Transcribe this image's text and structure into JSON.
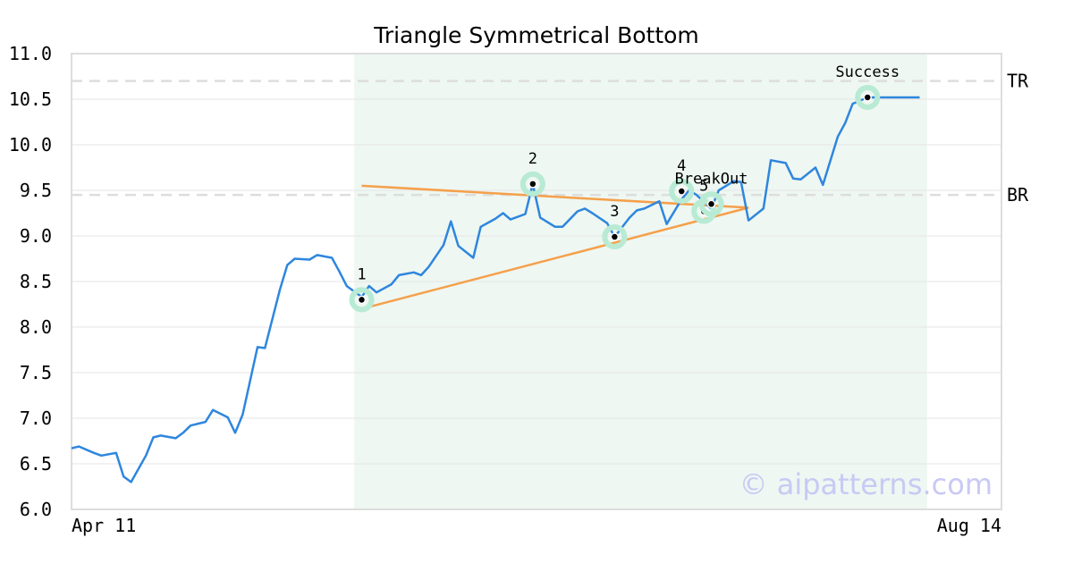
{
  "chart_data": {
    "type": "line",
    "title": "Triangle Symmetrical Bottom",
    "watermark": "© aipatterns.com",
    "ylim": [
      6.0,
      11.0
    ],
    "yticks": [
      "6.0",
      "6.5",
      "7.0",
      "7.5",
      "8.0",
      "8.5",
      "9.0",
      "9.5",
      "10.0",
      "10.5",
      "11.0"
    ],
    "xlim": [
      "2024-04-11",
      "2024-08-14"
    ],
    "x_start_label": "Apr 11",
    "x_end_label": "Aug 14",
    "levels": [
      {
        "name": "TR",
        "value": 10.7
      },
      {
        "name": "BR",
        "value": 9.45
      }
    ],
    "pattern_region": {
      "start": "2024-05-19",
      "end": "2024-08-04"
    },
    "series": [
      {
        "x": [
          "2024-04-11",
          "2024-04-12",
          "2024-04-14",
          "2024-04-15",
          "2024-04-17",
          "2024-04-18",
          "2024-04-19",
          "2024-04-21",
          "2024-04-22",
          "2024-04-23",
          "2024-04-25",
          "2024-04-26",
          "2024-04-27",
          "2024-04-29",
          "2024-04-30",
          "2024-05-02",
          "2024-05-03",
          "2024-05-04",
          "2024-05-06",
          "2024-05-07",
          "2024-05-09",
          "2024-05-10",
          "2024-05-11",
          "2024-05-13",
          "2024-05-14",
          "2024-05-16",
          "2024-05-17",
          "2024-05-18",
          "2024-05-20",
          "2024-05-21",
          "2024-05-22",
          "2024-05-24",
          "2024-05-25",
          "2024-05-27",
          "2024-05-28",
          "2024-05-29",
          "2024-05-31",
          "2024-06-01",
          "2024-06-02",
          "2024-06-04",
          "2024-06-05",
          "2024-06-07",
          "2024-06-08",
          "2024-06-09",
          "2024-06-11",
          "2024-06-12",
          "2024-06-13",
          "2024-06-15",
          "2024-06-16",
          "2024-06-18",
          "2024-06-19",
          "2024-06-20",
          "2024-06-22",
          "2024-06-23",
          "2024-06-25",
          "2024-06-26",
          "2024-06-27",
          "2024-06-29",
          "2024-06-30",
          "2024-07-02",
          "2024-07-03",
          "2024-07-04",
          "2024-07-06",
          "2024-07-07",
          "2024-07-09",
          "2024-07-10",
          "2024-07-11",
          "2024-07-13",
          "2024-07-14",
          "2024-07-16",
          "2024-07-17",
          "2024-07-18",
          "2024-07-20",
          "2024-07-21",
          "2024-07-23",
          "2024-07-24",
          "2024-07-25",
          "2024-07-27",
          "2024-07-28",
          "2024-07-30",
          "2024-07-31",
          "2024-08-01",
          "2024-08-03"
        ],
        "values": [
          6.67,
          6.69,
          6.62,
          6.59,
          6.62,
          6.36,
          6.3,
          6.59,
          6.79,
          6.81,
          6.78,
          6.84,
          6.92,
          6.96,
          7.09,
          7.01,
          6.84,
          7.04,
          7.78,
          7.77,
          8.41,
          8.68,
          8.75,
          8.74,
          8.79,
          8.76,
          8.61,
          8.45,
          8.33,
          8.45,
          8.38,
          8.47,
          8.57,
          8.6,
          8.57,
          8.66,
          8.9,
          9.16,
          8.89,
          8.76,
          9.1,
          9.19,
          9.25,
          9.18,
          9.24,
          9.57,
          9.2,
          9.1,
          9.1,
          9.27,
          9.3,
          9.25,
          9.14,
          8.99,
          9.2,
          9.28,
          9.3,
          9.38,
          9.13,
          9.4,
          9.5,
          9.45,
          9.3,
          9.5,
          9.6,
          9.59,
          9.17,
          9.3,
          9.83,
          9.8,
          9.63,
          9.62,
          9.75,
          9.56,
          10.09,
          10.24,
          10.45,
          10.52,
          10.52,
          10.52,
          10.52,
          10.52,
          10.52
        ]
      }
    ],
    "points": [
      {
        "label": "1",
        "x": "2024-05-20",
        "y": 8.3
      },
      {
        "label": "2",
        "x": "2024-06-12",
        "y": 9.57
      },
      {
        "label": "3",
        "x": "2024-06-23",
        "y": 8.99
      },
      {
        "label": "4",
        "x": "2024-07-02",
        "y": 9.49
      },
      {
        "label": "5",
        "x": "2024-07-05",
        "y": 9.27
      },
      {
        "label": "BreakOut",
        "x": "2024-07-06",
        "y": 9.35
      },
      {
        "label": "Success",
        "x": "2024-07-27",
        "y": 10.52
      }
    ],
    "trendlines": [
      {
        "name": "upper",
        "x": [
          "2024-05-20",
          "2024-07-11"
        ],
        "y": [
          9.55,
          9.31
        ]
      },
      {
        "name": "lower",
        "x": [
          "2024-05-20",
          "2024-07-11"
        ],
        "y": [
          8.2,
          9.31
        ]
      }
    ],
    "colors": {
      "line": "#2e86de",
      "trend": "#f5a04a",
      "marker_halo": "#b8ead4",
      "region": "#eef7f2",
      "level": "#dddddd",
      "grid": "#e6e6e6",
      "frame": "#dddddd"
    }
  }
}
